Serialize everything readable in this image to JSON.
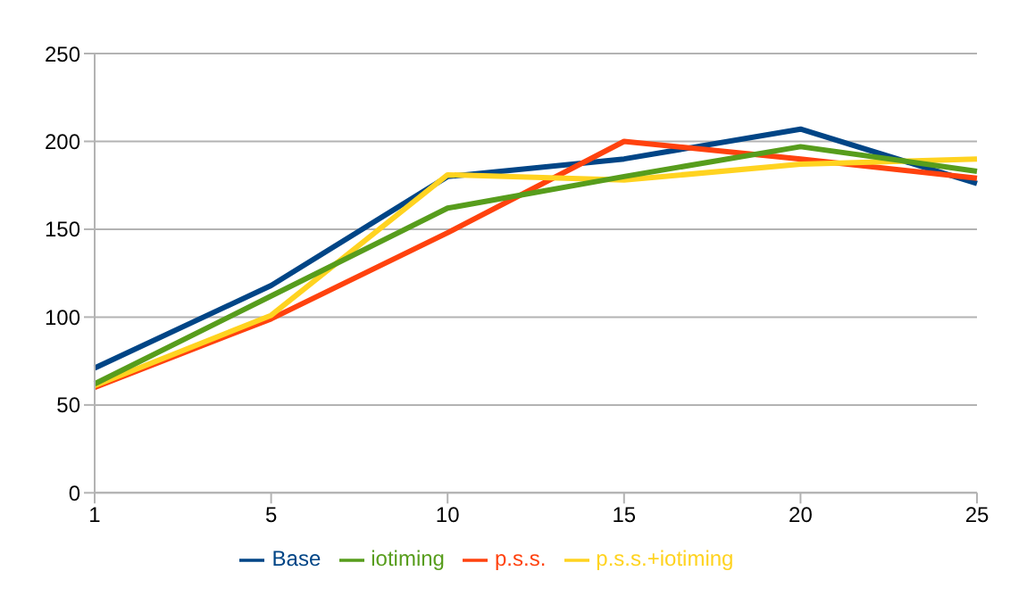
{
  "chart_data": {
    "type": "line",
    "categories": [
      "1",
      "5",
      "10",
      "15",
      "20",
      "25"
    ],
    "series": [
      {
        "name": "Base",
        "color": "#004586",
        "values": [
          71,
          118,
          180,
          190,
          207,
          176
        ]
      },
      {
        "name": "p.s.s.",
        "color": "#ff420e",
        "values": [
          60,
          99,
          148,
          200,
          190,
          179
        ]
      },
      {
        "name": "p.s.s.+iotiming",
        "color": "#ffd320",
        "values": [
          61,
          101,
          181,
          178,
          187,
          190
        ]
      },
      {
        "name": "iotiming",
        "color": "#579d1c",
        "values": [
          62,
          112,
          162,
          180,
          197,
          183
        ]
      }
    ],
    "ylim": [
      0,
      250
    ],
    "yticks": [
      0,
      50,
      100,
      150,
      200,
      250
    ],
    "grid": "y",
    "legend": "bottom",
    "marker": "none",
    "line_style": "solid"
  }
}
